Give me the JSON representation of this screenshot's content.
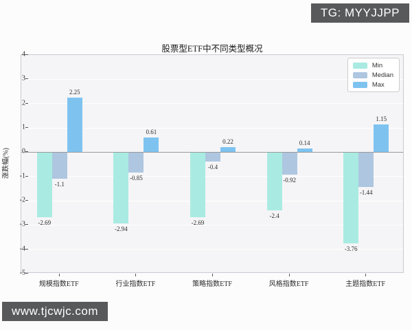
{
  "badges": {
    "top_right": "TG: MYYJJPP",
    "bottom_left": "www.tjcwjc.com"
  },
  "chart_data": {
    "type": "bar",
    "title": "股票型ETF中不同类型概况",
    "xlabel": "",
    "ylabel": "涨跌幅(%)",
    "categories": [
      "规模指数ETF",
      "行业指数ETF",
      "策略指数ETF",
      "风格指数ETF",
      "主题指数ETF"
    ],
    "series": [
      {
        "name": "Min",
        "color": "#a9ebe2",
        "values": [
          -2.69,
          -2.94,
          -2.69,
          -2.4,
          -3.76
        ]
      },
      {
        "name": "Median",
        "color": "#aec6e0",
        "values": [
          -1.1,
          -0.85,
          -0.4,
          -0.92,
          -1.44
        ]
      },
      {
        "name": "Max",
        "color": "#7ec3f0",
        "values": [
          2.25,
          0.61,
          0.22,
          0.14,
          1.15
        ]
      }
    ],
    "ylim": [
      -5,
      4
    ],
    "yticks": [
      4,
      3,
      2,
      1,
      0,
      -1,
      -2,
      -3,
      -4,
      -5
    ],
    "grid": true,
    "legend_position": "upper right",
    "zero_line_color": "#9a9a9a"
  }
}
